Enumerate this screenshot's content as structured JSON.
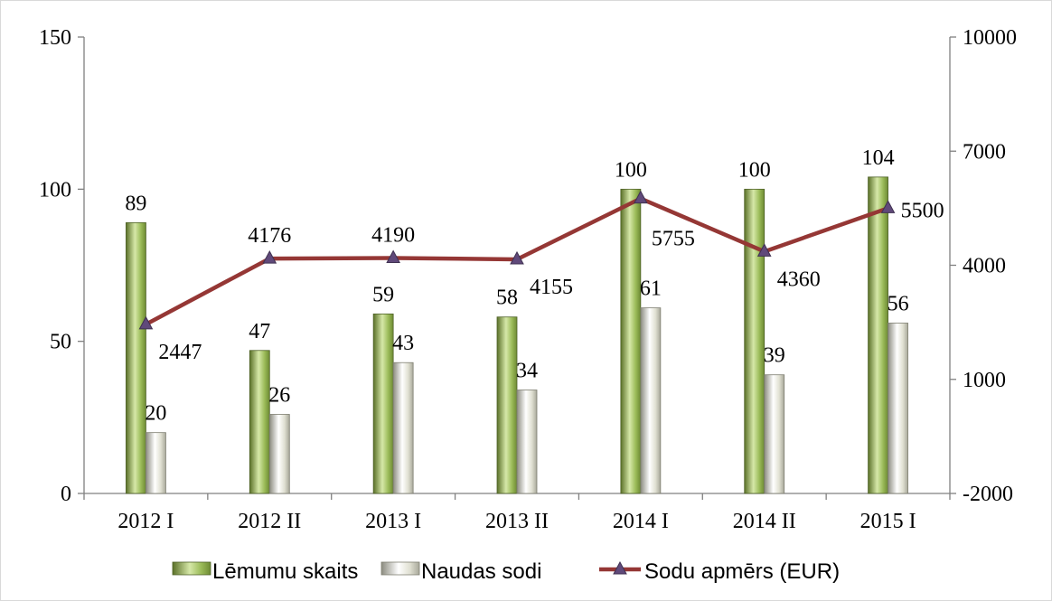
{
  "chart_data": {
    "type": "bar",
    "categories": [
      "2012 I",
      "2012 II",
      "2013 I",
      "2013 II",
      "2014 I",
      "2014 II",
      "2015 I"
    ],
    "series": [
      {
        "name": "Lēmumu skaits",
        "kind": "bar",
        "axis": "left",
        "values": [
          89,
          47,
          59,
          58,
          100,
          100,
          104
        ],
        "color": "#9bbb59"
      },
      {
        "name": "Naudas sodi",
        "kind": "bar",
        "axis": "left",
        "values": [
          20,
          26,
          43,
          34,
          61,
          39,
          56
        ],
        "color": "#d8d8c8"
      },
      {
        "name": "Sodu apmērs (EUR)",
        "kind": "line",
        "axis": "right",
        "values": [
          2447,
          4176,
          4190,
          4155,
          5755,
          4360,
          5500
        ],
        "color": "#953735",
        "marker_color": "#60497a"
      }
    ],
    "y_left": {
      "min": 0,
      "max": 150,
      "ticks": [
        0,
        50,
        100,
        150
      ]
    },
    "y_right": {
      "min": -2000,
      "max": 10000,
      "ticks": [
        -2000,
        1000,
        4000,
        7000,
        10000
      ]
    },
    "legend_position": "bottom",
    "grid": false
  }
}
